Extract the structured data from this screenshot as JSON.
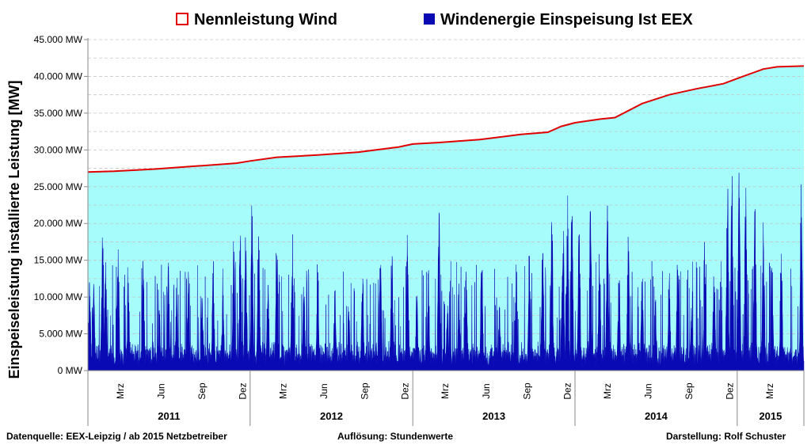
{
  "chart_data": {
    "type": "area",
    "y_unit": "MW",
    "ylabel": "Einspeiseleistung installierte Leistung [MW]",
    "ylim": [
      0,
      45000
    ],
    "yticks": [
      {
        "value": 0,
        "label": "0 MW"
      },
      {
        "value": 5000,
        "label": "5.000 MW"
      },
      {
        "value": 10000,
        "label": "10.000 MW"
      },
      {
        "value": 15000,
        "label": "15.000 MW"
      },
      {
        "value": 20000,
        "label": "20.000 MW"
      },
      {
        "value": 25000,
        "label": "25.000 MW"
      },
      {
        "value": 30000,
        "label": "30.000 MW"
      },
      {
        "value": 35000,
        "label": "35.000 MW"
      },
      {
        "value": 40000,
        "label": "40.000 MW"
      },
      {
        "value": 45000,
        "label": "45.000 MW"
      }
    ],
    "grid": true,
    "legend_position": "top",
    "x_range": [
      "2011-01-01",
      "2015-05-31"
    ],
    "month_ticks": [
      {
        "date": "2011-03-15",
        "label": "Mrz"
      },
      {
        "date": "2011-06-15",
        "label": "Jun"
      },
      {
        "date": "2011-09-15",
        "label": "Sep"
      },
      {
        "date": "2011-12-15",
        "label": "Dez"
      },
      {
        "date": "2012-03-15",
        "label": "Mrz"
      },
      {
        "date": "2012-06-15",
        "label": "Jun"
      },
      {
        "date": "2012-09-15",
        "label": "Sep"
      },
      {
        "date": "2012-12-15",
        "label": "Dez"
      },
      {
        "date": "2013-03-15",
        "label": "Mrz"
      },
      {
        "date": "2013-06-15",
        "label": "Jun"
      },
      {
        "date": "2013-09-15",
        "label": "Sep"
      },
      {
        "date": "2013-12-15",
        "label": "Dez"
      },
      {
        "date": "2014-03-15",
        "label": "Mrz"
      },
      {
        "date": "2014-06-15",
        "label": "Jun"
      },
      {
        "date": "2014-09-15",
        "label": "Sep"
      },
      {
        "date": "2014-12-15",
        "label": "Dez"
      },
      {
        "date": "2015-03-15",
        "label": "Mrz"
      }
    ],
    "years": [
      {
        "start": "2011-01-01",
        "end": "2012-01-01",
        "label": "2011"
      },
      {
        "start": "2012-01-01",
        "end": "2013-01-01",
        "label": "2012"
      },
      {
        "start": "2013-01-01",
        "end": "2014-01-01",
        "label": "2013"
      },
      {
        "start": "2014-01-01",
        "end": "2015-01-01",
        "label": "2014"
      },
      {
        "start": "2015-01-01",
        "end": "2015-05-31",
        "label": "2015"
      }
    ],
    "series": [
      {
        "name": "Nennleistung Wind",
        "line_color": "#e00000",
        "fill_color": "#a6fbfb",
        "points": [
          {
            "x": "2011-01-01",
            "y": 27000
          },
          {
            "x": "2011-03-01",
            "y": 27100
          },
          {
            "x": "2011-06-01",
            "y": 27400
          },
          {
            "x": "2011-09-01",
            "y": 27800
          },
          {
            "x": "2011-12-01",
            "y": 28200
          },
          {
            "x": "2012-01-01",
            "y": 28500
          },
          {
            "x": "2012-03-01",
            "y": 29000
          },
          {
            "x": "2012-06-01",
            "y": 29300
          },
          {
            "x": "2012-09-01",
            "y": 29700
          },
          {
            "x": "2012-12-01",
            "y": 30400
          },
          {
            "x": "2013-01-01",
            "y": 30800
          },
          {
            "x": "2013-03-01",
            "y": 31000
          },
          {
            "x": "2013-06-01",
            "y": 31400
          },
          {
            "x": "2013-09-01",
            "y": 32100
          },
          {
            "x": "2013-11-01",
            "y": 32400
          },
          {
            "x": "2013-12-01",
            "y": 33200
          },
          {
            "x": "2014-01-01",
            "y": 33700
          },
          {
            "x": "2014-03-01",
            "y": 34200
          },
          {
            "x": "2014-04-01",
            "y": 34400
          },
          {
            "x": "2014-06-01",
            "y": 36300
          },
          {
            "x": "2014-08-01",
            "y": 37500
          },
          {
            "x": "2014-10-01",
            "y": 38300
          },
          {
            "x": "2014-12-01",
            "y": 39000
          },
          {
            "x": "2015-01-01",
            "y": 39700
          },
          {
            "x": "2015-03-01",
            "y": 41000
          },
          {
            "x": "2015-04-01",
            "y": 41300
          },
          {
            "x": "2015-05-31",
            "y": 41400
          }
        ]
      },
      {
        "name": "Windenergie Einspeisung Ist EEX",
        "color": "#0a0ab4",
        "peaks": [
          {
            "x": "2011-01-05",
            "y": 14000
          },
          {
            "x": "2011-01-14",
            "y": 12000
          },
          {
            "x": "2011-02-03",
            "y": 22300
          },
          {
            "x": "2011-02-10",
            "y": 15500
          },
          {
            "x": "2011-03-10",
            "y": 18500
          },
          {
            "x": "2011-04-02",
            "y": 12500
          },
          {
            "x": "2011-05-05",
            "y": 17000
          },
          {
            "x": "2011-06-10",
            "y": 10000
          },
          {
            "x": "2011-07-01",
            "y": 16000
          },
          {
            "x": "2011-07-20",
            "y": 13000
          },
          {
            "x": "2011-08-15",
            "y": 14000
          },
          {
            "x": "2011-09-15",
            "y": 11000
          },
          {
            "x": "2011-10-10",
            "y": 15000
          },
          {
            "x": "2011-11-01",
            "y": 12000
          },
          {
            "x": "2011-11-25",
            "y": 20000
          },
          {
            "x": "2011-12-10",
            "y": 21000
          },
          {
            "x": "2011-12-22",
            "y": 19000
          },
          {
            "x": "2012-01-05",
            "y": 23500
          },
          {
            "x": "2012-01-20",
            "y": 21000
          },
          {
            "x": "2012-02-10",
            "y": 14000
          },
          {
            "x": "2012-03-01",
            "y": 20500
          },
          {
            "x": "2012-04-05",
            "y": 19500
          },
          {
            "x": "2012-05-01",
            "y": 13000
          },
          {
            "x": "2012-06-01",
            "y": 14500
          },
          {
            "x": "2012-07-10",
            "y": 12000
          },
          {
            "x": "2012-08-10",
            "y": 9000
          },
          {
            "x": "2012-09-10",
            "y": 15000
          },
          {
            "x": "2012-10-20",
            "y": 16500
          },
          {
            "x": "2012-11-15",
            "y": 17000
          },
          {
            "x": "2012-12-20",
            "y": 19800
          },
          {
            "x": "2013-01-10",
            "y": 12000
          },
          {
            "x": "2013-02-05",
            "y": 14000
          },
          {
            "x": "2013-03-01",
            "y": 22600
          },
          {
            "x": "2013-03-20",
            "y": 10000
          },
          {
            "x": "2013-04-15",
            "y": 12000
          },
          {
            "x": "2013-05-01",
            "y": 14500
          },
          {
            "x": "2013-06-05",
            "y": 18000
          },
          {
            "x": "2013-07-15",
            "y": 9000
          },
          {
            "x": "2013-08-20",
            "y": 11000
          },
          {
            "x": "2013-09-20",
            "y": 16500
          },
          {
            "x": "2013-10-20",
            "y": 21000
          },
          {
            "x": "2013-11-10",
            "y": 22500
          },
          {
            "x": "2013-12-05",
            "y": 24500
          },
          {
            "x": "2013-12-15",
            "y": 25500
          },
          {
            "x": "2013-12-25",
            "y": 24000
          },
          {
            "x": "2014-01-10",
            "y": 23000
          },
          {
            "x": "2014-02-05",
            "y": 24500
          },
          {
            "x": "2014-02-25",
            "y": 18000
          },
          {
            "x": "2014-03-15",
            "y": 24000
          },
          {
            "x": "2014-04-10",
            "y": 14000
          },
          {
            "x": "2014-05-01",
            "y": 21000
          },
          {
            "x": "2014-06-01",
            "y": 15000
          },
          {
            "x": "2014-07-01",
            "y": 10000
          },
          {
            "x": "2014-08-01",
            "y": 14000
          },
          {
            "x": "2014-08-20",
            "y": 16000
          },
          {
            "x": "2014-09-20",
            "y": 9000
          },
          {
            "x": "2014-10-20",
            "y": 19000
          },
          {
            "x": "2014-11-10",
            "y": 16000
          },
          {
            "x": "2014-12-10",
            "y": 28000
          },
          {
            "x": "2014-12-20",
            "y": 29000
          },
          {
            "x": "2015-01-05",
            "y": 30500
          },
          {
            "x": "2015-01-20",
            "y": 27000
          },
          {
            "x": "2015-02-10",
            "y": 24000
          },
          {
            "x": "2015-03-01",
            "y": 22000
          },
          {
            "x": "2015-03-20",
            "y": 17000
          },
          {
            "x": "2015-04-10",
            "y": 19000
          },
          {
            "x": "2015-05-25",
            "y": 29500
          }
        ]
      }
    ]
  },
  "footer": {
    "source": "Datenquelle:  EEX-Leipzig   /  ab 2015 Netzbetreiber",
    "resolution": "Auflösung:  Stundenwerte",
    "author": "Darstellung: Rolf Schuster"
  }
}
